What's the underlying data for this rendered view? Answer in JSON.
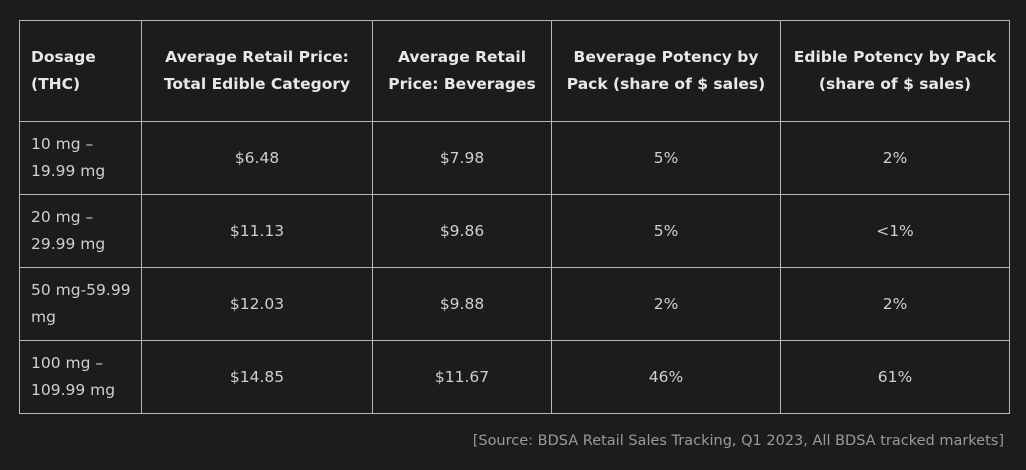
{
  "chart_data": {
    "type": "table",
    "columns": [
      "Dosage (THC)",
      "Average Retail Price: Total Edible Category",
      "Average Retail Price: Beverages",
      "Beverage Potency by Pack (share of $ sales)",
      "Edible Potency by Pack (share of $ sales)"
    ],
    "rows": [
      [
        "10 mg – 19.99 mg",
        "$6.48",
        "$7.98",
        "5%",
        "2%"
      ],
      [
        "20 mg – 29.99 mg",
        "$11.13",
        "$9.86",
        "5%",
        "<1%"
      ],
      [
        "50 mg-59.99 mg",
        "$12.03",
        "$9.88",
        "2%",
        "2%"
      ],
      [
        "100 mg – 109.99 mg",
        "$14.85",
        "$11.67",
        "46%",
        "61%"
      ]
    ]
  },
  "source": "[Source: BDSA Retail Sales Tracking, Q1 2023, All BDSA tracked markets]"
}
